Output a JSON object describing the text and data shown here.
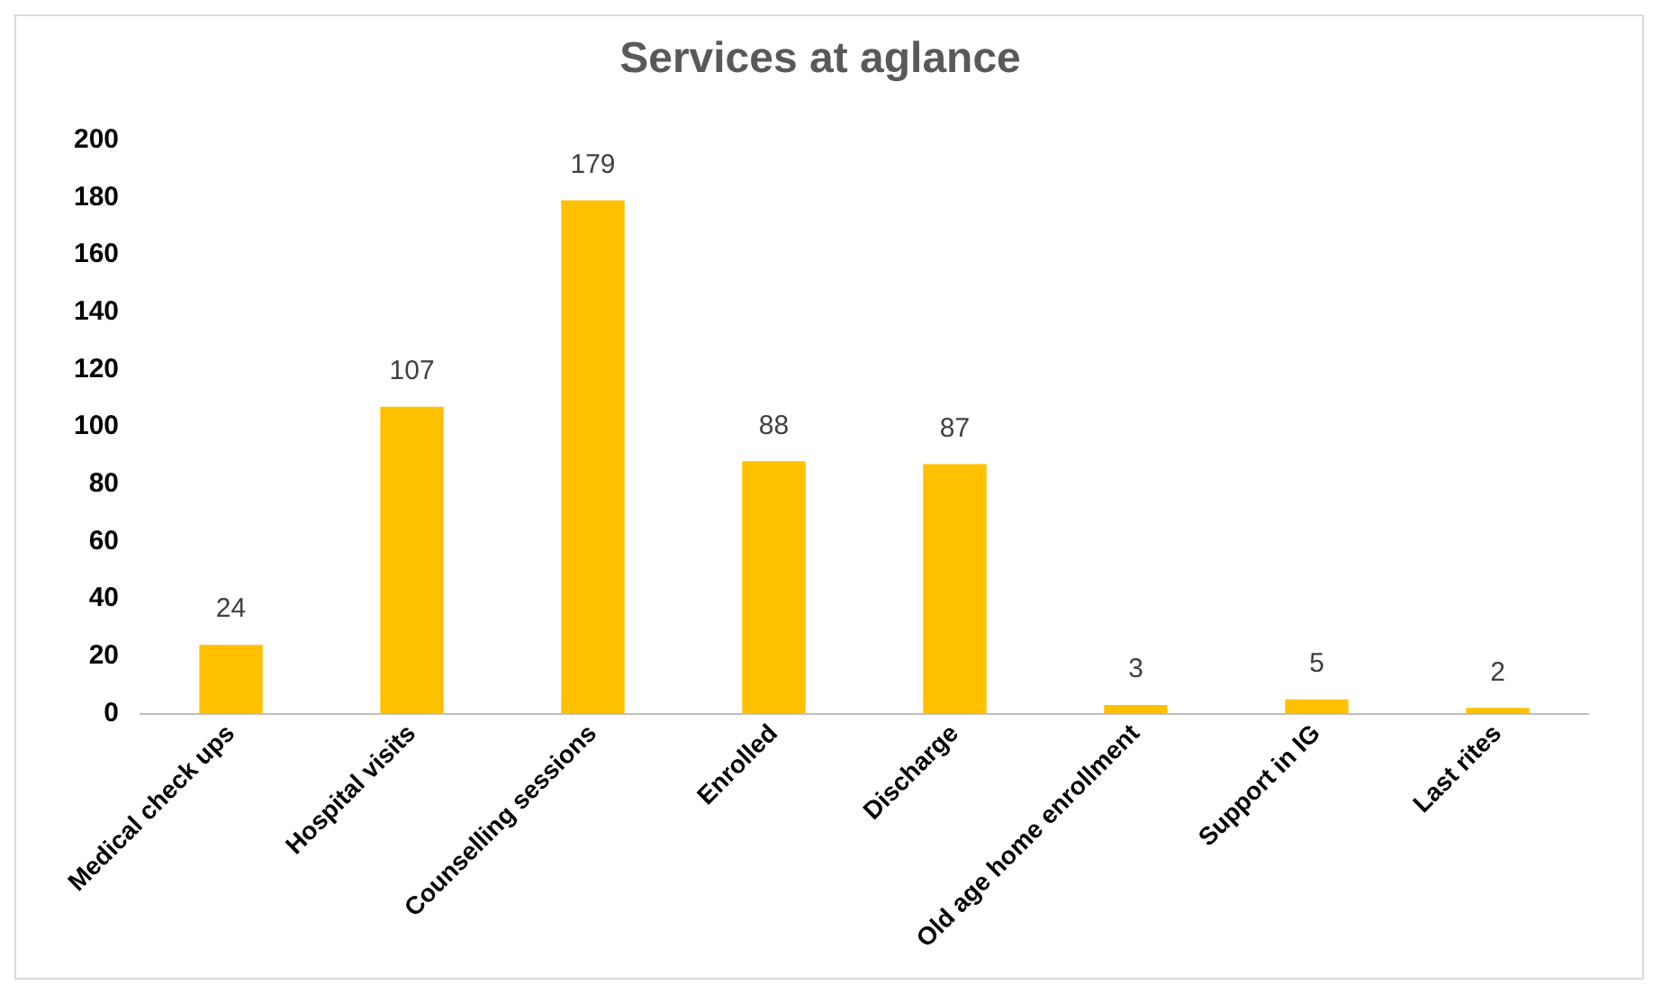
{
  "chart_data": {
    "type": "bar",
    "title": "Services at aglance",
    "categories": [
      "Medical check ups",
      "Hospital visits",
      "Counselling sessions",
      "Enrolled",
      "Discharge",
      "Old age home enrollment",
      "Support in IG",
      "Last rites"
    ],
    "values": [
      24,
      107,
      179,
      88,
      87,
      3,
      5,
      2
    ],
    "color": "#ffc000",
    "ylim": [
      0,
      200
    ],
    "yticks": [
      0,
      20,
      40,
      60,
      80,
      100,
      120,
      140,
      160,
      180,
      200
    ],
    "grid": false,
    "data_labels": true,
    "legend": false
  }
}
